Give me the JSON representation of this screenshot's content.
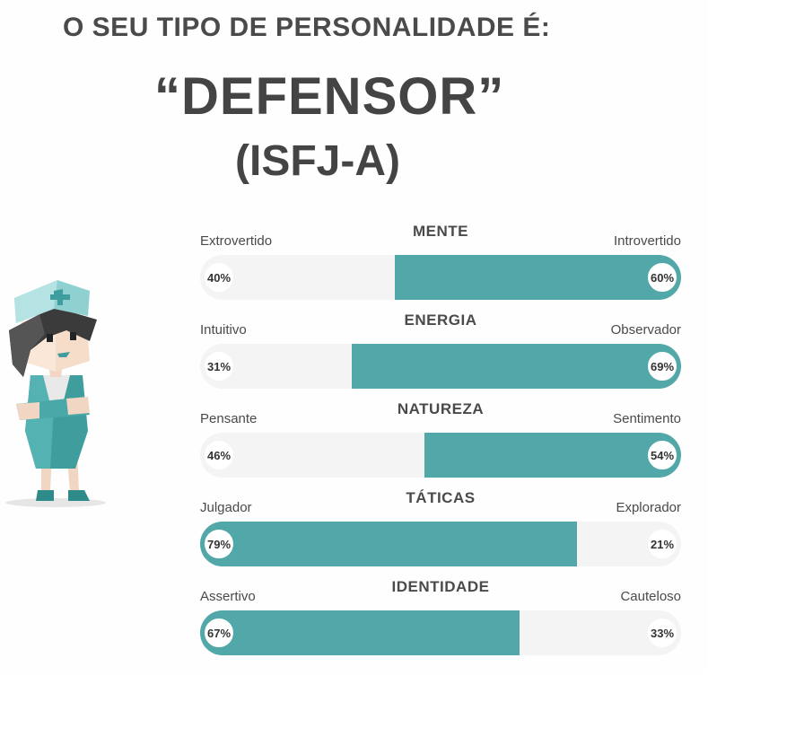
{
  "heading": "O SEU TIPO DE PERSONALIDADE É:",
  "type_name": "“DEFENSOR”",
  "type_code": "(ISFJ-A)",
  "colors": {
    "accent": "#52a8a8",
    "track": "#f4f4f4",
    "text": "#454545"
  },
  "avatar_icon": "nurse-character-icon",
  "traits": [
    {
      "title": "MENTE",
      "left_label": "Extrovertido",
      "right_label": "Introvertido",
      "left_pct": "40%",
      "right_pct": "60%",
      "left_value": 40,
      "dominant": "right"
    },
    {
      "title": "ENERGIA",
      "left_label": "Intuitivo",
      "right_label": "Observador",
      "left_pct": "31%",
      "right_pct": "69%",
      "left_value": 31,
      "dominant": "right"
    },
    {
      "title": "NATUREZA",
      "left_label": "Pensante",
      "right_label": "Sentimento",
      "left_pct": "46%",
      "right_pct": "54%",
      "left_value": 46,
      "dominant": "right"
    },
    {
      "title": "TÁTICAS",
      "left_label": "Julgador",
      "right_label": "Explorador",
      "left_pct": "79%",
      "right_pct": "21%",
      "left_value": 79,
      "dominant": "left"
    },
    {
      "title": "IDENTIDADE",
      "left_label": "Assertivo",
      "right_label": "Cauteloso",
      "left_pct": "67%",
      "right_pct": "33%",
      "left_value": 67,
      "dominant": "left"
    }
  ]
}
